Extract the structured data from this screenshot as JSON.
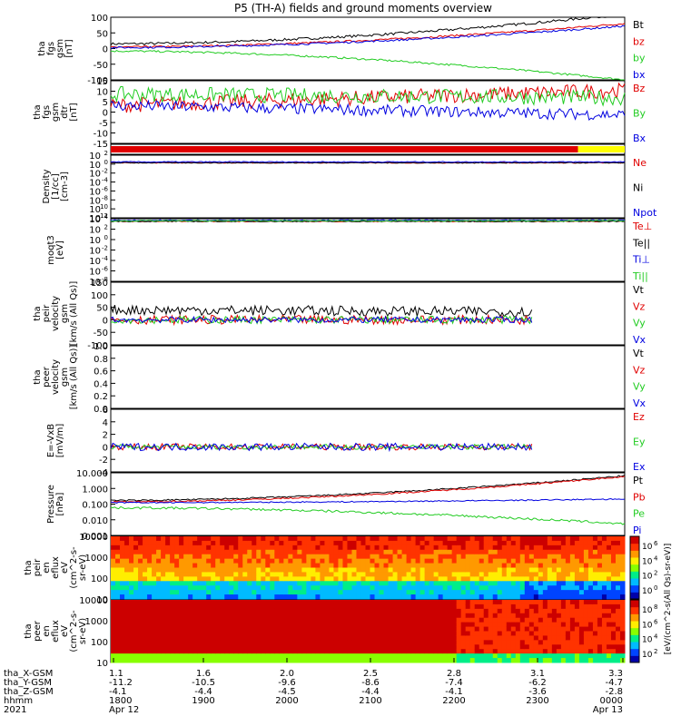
{
  "title": "P5 (TH-A) fields and ground moments overview",
  "colors": {
    "black": "#000000",
    "red": "#e00000",
    "green": "#22cc22",
    "blue": "#0000e0",
    "yellow": "#ffff00"
  },
  "chart_data": [
    {
      "type": "line",
      "panel": "fgs_gsm",
      "ylabel": [
        "tha",
        "fgs",
        "gsm",
        "[nT]"
      ],
      "yticks": [
        "100",
        "50",
        "0",
        "-50",
        "-100"
      ],
      "ylim": [
        -100,
        100
      ],
      "series": [
        {
          "name": "Bt",
          "color": "black",
          "start": 15,
          "end": 110,
          "noise": 4
        },
        {
          "name": "bz",
          "color": "red",
          "start": 5,
          "end": 80,
          "noise": 3
        },
        {
          "name": "by",
          "color": "green",
          "start": -8,
          "end": -100,
          "noise": 3
        },
        {
          "name": "bx",
          "color": "blue",
          "start": 3,
          "end": 72,
          "noise": 3
        }
      ]
    },
    {
      "type": "line",
      "panel": "fgs_dsl_detrended",
      "ylabel": [
        "tha",
        "fgs",
        "gsm",
        "dtr",
        "[nT]"
      ],
      "yticks": [
        "15",
        "10",
        "5",
        "0",
        "-5",
        "-10",
        "-15"
      ],
      "ylim": [
        -18,
        15
      ],
      "series": [
        {
          "name": "Bz",
          "color": "red",
          "start": 2,
          "end": 10,
          "noise": 4
        },
        {
          "name": "By",
          "color": "green",
          "start": 8,
          "end": 6,
          "noise": 4
        },
        {
          "name": "Bx",
          "color": "blue",
          "start": 2,
          "end": -3,
          "noise": 3
        }
      ]
    },
    {
      "type": "bar",
      "panel": "mode_bar",
      "segments": [
        {
          "color": "red",
          "from": 1.1,
          "to": 3.1
        },
        {
          "color": "yellow",
          "from": 3.1,
          "to": 3.3
        }
      ]
    },
    {
      "type": "line",
      "panel": "density",
      "ylabel": [
        "Density",
        "[1/cc]",
        "[cm-3]"
      ],
      "yticks": [
        "10^2",
        "10^0",
        "10^-2",
        "10^-4",
        "10^-6",
        "10^-8",
        "10^-10",
        "10^-12"
      ],
      "ylim": [
        -12,
        2
      ],
      "log": true,
      "series": [
        {
          "name": "Ne",
          "color": "red",
          "start": 0.3,
          "end": 0.3,
          "noise": 0.1
        },
        {
          "name": "Ni",
          "color": "black",
          "start": 0.3,
          "end": 0.3,
          "noise": 0.1
        },
        {
          "name": "Npot",
          "color": "blue",
          "start": 0.5,
          "end": 0.5,
          "noise": 0.1
        }
      ]
    },
    {
      "type": "line",
      "panel": "temperature",
      "ylabel": [
        "moqt3",
        "[eV]"
      ],
      "yticks": [
        "10^4",
        "10^2",
        "10^0",
        "10^-2",
        "10^-4",
        "10^-6",
        "10^-8"
      ],
      "ylim": [
        -8,
        4
      ],
      "log": true,
      "series": [
        {
          "name": "Te⊥",
          "color": "red",
          "start": 3.5,
          "end": 3.5,
          "noise": 0.1
        },
        {
          "name": "Te||",
          "color": "black",
          "start": 3.5,
          "end": 3.5,
          "noise": 0.1
        },
        {
          "name": "Ti⊥",
          "color": "blue",
          "start": 3.7,
          "end": 3.7,
          "noise": 0.1
        },
        {
          "name": "Ti||",
          "color": "green",
          "start": 3.6,
          "end": 3.6,
          "noise": 0.1
        }
      ]
    },
    {
      "type": "line",
      "panel": "peir_velocity",
      "ylabel": [
        "tha",
        "peir",
        "velocity",
        "gsm",
        "[km/s (All Qs)]"
      ],
      "yticks": [
        "150",
        "100",
        "50",
        "0",
        "-50",
        "-100"
      ],
      "ylim": [
        -100,
        150
      ],
      "series": [
        {
          "name": "Vt",
          "color": "black",
          "start": 40,
          "end": 30,
          "noise": 20
        },
        {
          "name": "Vz",
          "color": "red",
          "start": 0,
          "end": 0,
          "noise": 18
        },
        {
          "name": "Vy",
          "color": "green",
          "start": 0,
          "end": 0,
          "noise": 15
        },
        {
          "name": "Vx",
          "color": "blue",
          "start": 0,
          "end": 0,
          "noise": 12
        }
      ]
    },
    {
      "type": "line",
      "panel": "peer_velocity",
      "ylabel": [
        "tha",
        "peer",
        "velocity",
        "gsm",
        "[km/s (All Qs)]"
      ],
      "yticks": [
        "1.0",
        "0.8",
        "0.6",
        "0.4",
        "0.2",
        "0.0"
      ],
      "ylim": [
        0,
        1
      ],
      "series": [
        {
          "name": "Vt",
          "color": "black"
        },
        {
          "name": "Vz",
          "color": "red"
        },
        {
          "name": "Vy",
          "color": "green"
        },
        {
          "name": "Vx",
          "color": "blue"
        }
      ]
    },
    {
      "type": "line",
      "panel": "efield",
      "ylabel": [
        "E=-VxB",
        "[mV/m]"
      ],
      "yticks": [
        "6",
        "4",
        "2",
        "0",
        "-2",
        "-4"
      ],
      "ylim": [
        -4,
        6
      ],
      "series": [
        {
          "name": "Ez",
          "color": "red",
          "start": 0,
          "end": 0,
          "noise": 0.5
        },
        {
          "name": "Ey",
          "color": "green",
          "start": 0,
          "end": 0,
          "noise": 0.4
        },
        {
          "name": "Ex",
          "color": "blue",
          "start": 0,
          "end": 0,
          "noise": 0.6
        }
      ]
    },
    {
      "type": "line",
      "panel": "pressure",
      "ylabel": [
        "Pressure",
        "[nPa]"
      ],
      "yticks": [
        "10.000",
        "1.000",
        "0.100",
        "0.010",
        "0.001"
      ],
      "ylim": [
        -3,
        1.3
      ],
      "log": true,
      "series": [
        {
          "name": "Pt",
          "color": "black",
          "start": -0.6,
          "end": 1.1,
          "noise": 0.05
        },
        {
          "name": "Pb",
          "color": "red",
          "start": -0.7,
          "end": 1.05,
          "noise": 0.05
        },
        {
          "name": "Pe",
          "color": "green",
          "start": -1.1,
          "end": -2.2,
          "noise": 0.08
        },
        {
          "name": "Pi",
          "color": "blue",
          "start": -0.75,
          "end": -0.5,
          "noise": 0.04
        }
      ]
    },
    {
      "type": "heatmap",
      "panel": "peir_eflux",
      "ylabel": [
        "tha",
        "peir",
        "en",
        "eflux",
        "eV",
        "(cm^2-s-",
        "sr-eV)"
      ],
      "yticks": [
        "10000",
        "1000",
        "100",
        "10"
      ],
      "colorbar": [
        "10^6",
        "10^4",
        "10^2",
        "10^0"
      ],
      "colorbar_label": "[eV/(cm^2-s(All Qs)-sr-eV)]"
    },
    {
      "type": "heatmap",
      "panel": "peer_eflux",
      "ylabel": [
        "tha",
        "peer",
        "en",
        "eflux",
        "eV",
        "(cm^2-s-",
        "sr-eV)"
      ],
      "yticks": [
        "10000",
        "1000",
        "100",
        "10"
      ],
      "colorbar": [
        "10^8",
        "10^6",
        "10^4",
        "10^2"
      ]
    }
  ],
  "x_axis": {
    "rows": [
      {
        "label": "tha_X-GSM",
        "values": [
          "1.1",
          "1.6",
          "2.0",
          "2.5",
          "2.8",
          "3.1",
          "3.3"
        ]
      },
      {
        "label": "tha_Y-GSM",
        "values": [
          "-11.2",
          "-10.5",
          "-9.6",
          "-8.6",
          "-7.4",
          "-6.2",
          "-4.7"
        ]
      },
      {
        "label": "tha_Z-GSM",
        "values": [
          "-4.1",
          "-4.4",
          "-4.5",
          "-4.4",
          "-4.1",
          "-3.6",
          "-2.8"
        ]
      },
      {
        "label": "hhmm",
        "values": [
          "1800",
          "1900",
          "2000",
          "2100",
          "2200",
          "2300",
          "0000"
        ]
      },
      {
        "label": "2021",
        "values": [
          "Apr 12",
          "",
          "",
          "",
          "",
          "",
          "Apr 13"
        ]
      }
    ]
  }
}
